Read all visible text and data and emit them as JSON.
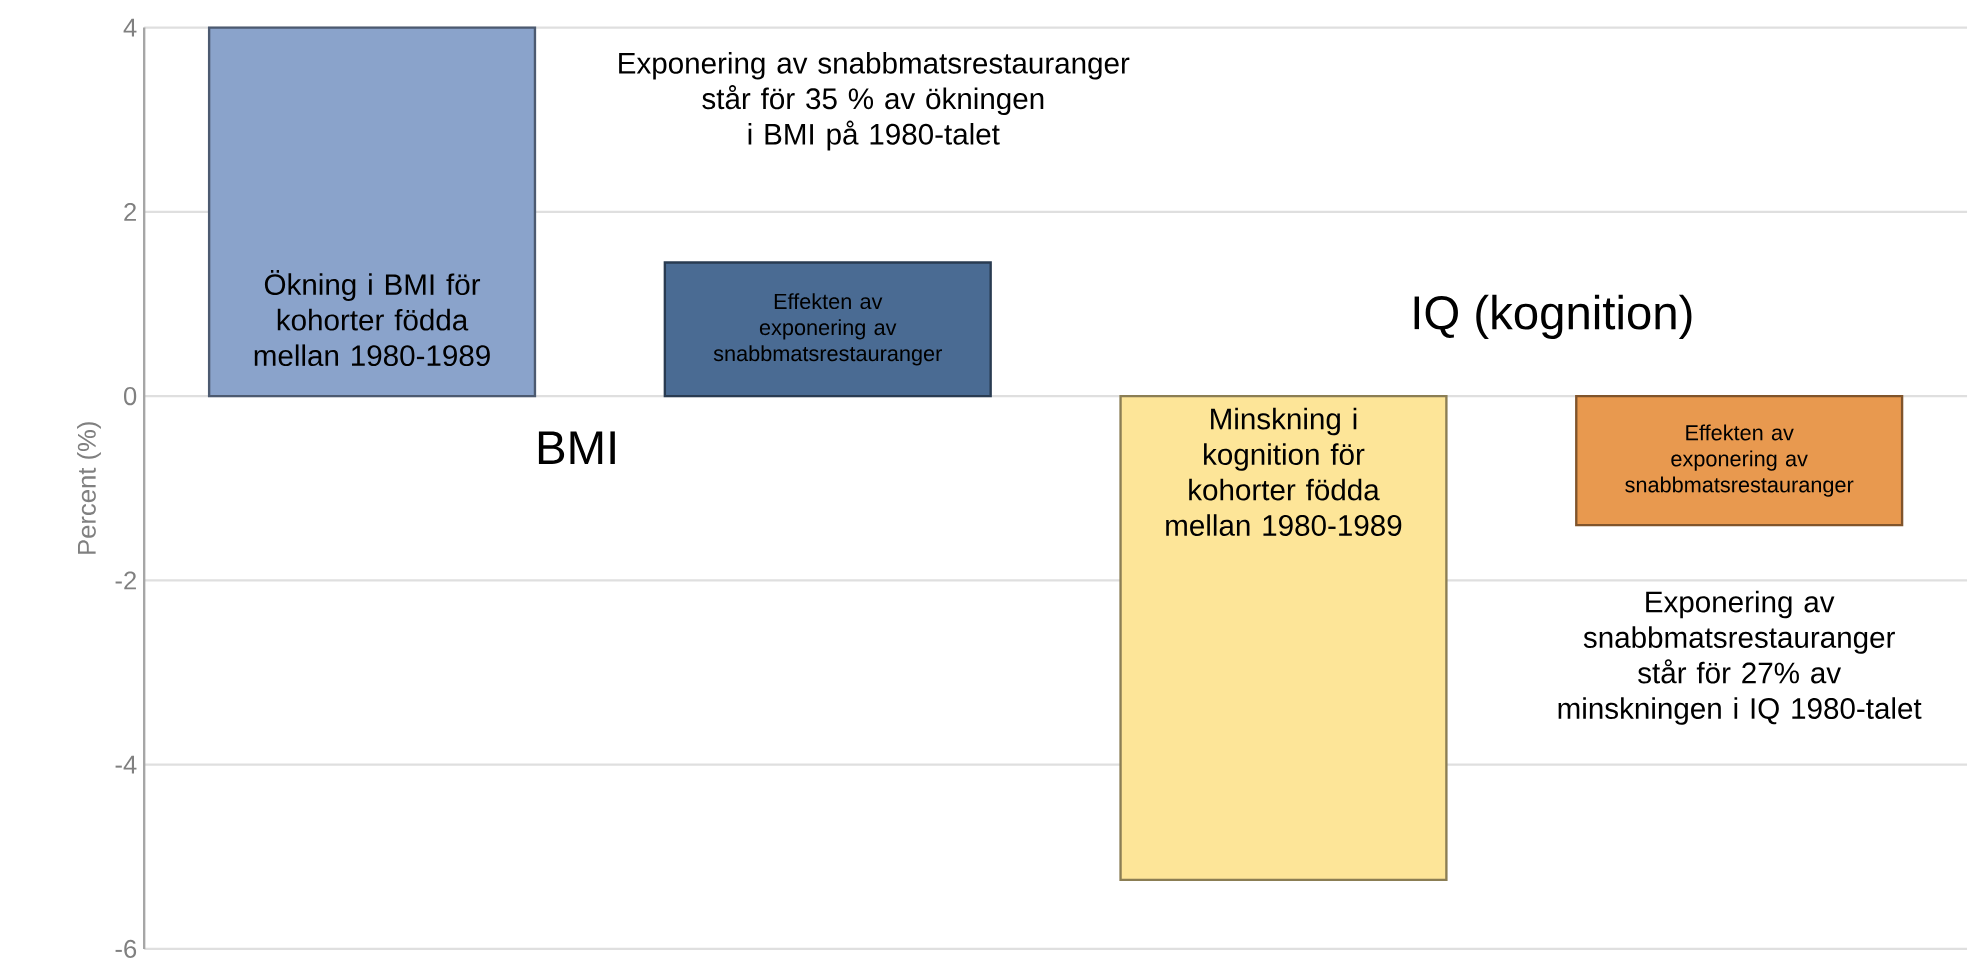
{
  "chart_data": {
    "type": "bar",
    "categories": [
      "Ökning i BMI för kohorter födda mellan 1980-1989",
      "Effekten av exponering av snabbmatsrestauranger",
      "Minskning i kognition för kohorter födda mellan 1980-1989",
      "Effekten av exponering av snabbmatsrestauranger"
    ],
    "values": [
      4.0,
      1.45,
      -5.25,
      -1.4
    ],
    "colors": [
      "#8aa3cb",
      "#4a6b93",
      "#fde598",
      "#e8994f"
    ],
    "ylabel": "Percent (%)",
    "ylim": [
      -6,
      4
    ],
    "yticks": [
      -6,
      -4,
      -2,
      0,
      2,
      4
    ],
    "grid": "y",
    "annotations": [
      "Exponering av snabbmatsrestauranger står för 35 % av ökningen i BMI på 1980-talet",
      "BMI",
      "IQ (kognition)",
      "Exponering av snabbmatsrestauranger står för 27% av minskningen i IQ 1980-talet"
    ]
  }
}
